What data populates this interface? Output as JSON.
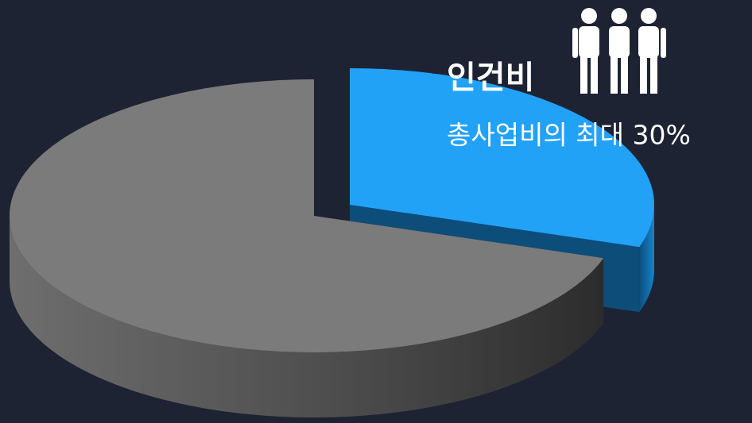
{
  "chart_data": {
    "type": "pie",
    "categories": [
      "인건비",
      null
    ],
    "values": [
      30,
      70
    ],
    "value_labels": [
      "총사업비의 최대 30%",
      null
    ],
    "colors": [
      "#22a2f7",
      "#7b7b7b"
    ],
    "exploded": [
      true,
      false
    ]
  }
}
